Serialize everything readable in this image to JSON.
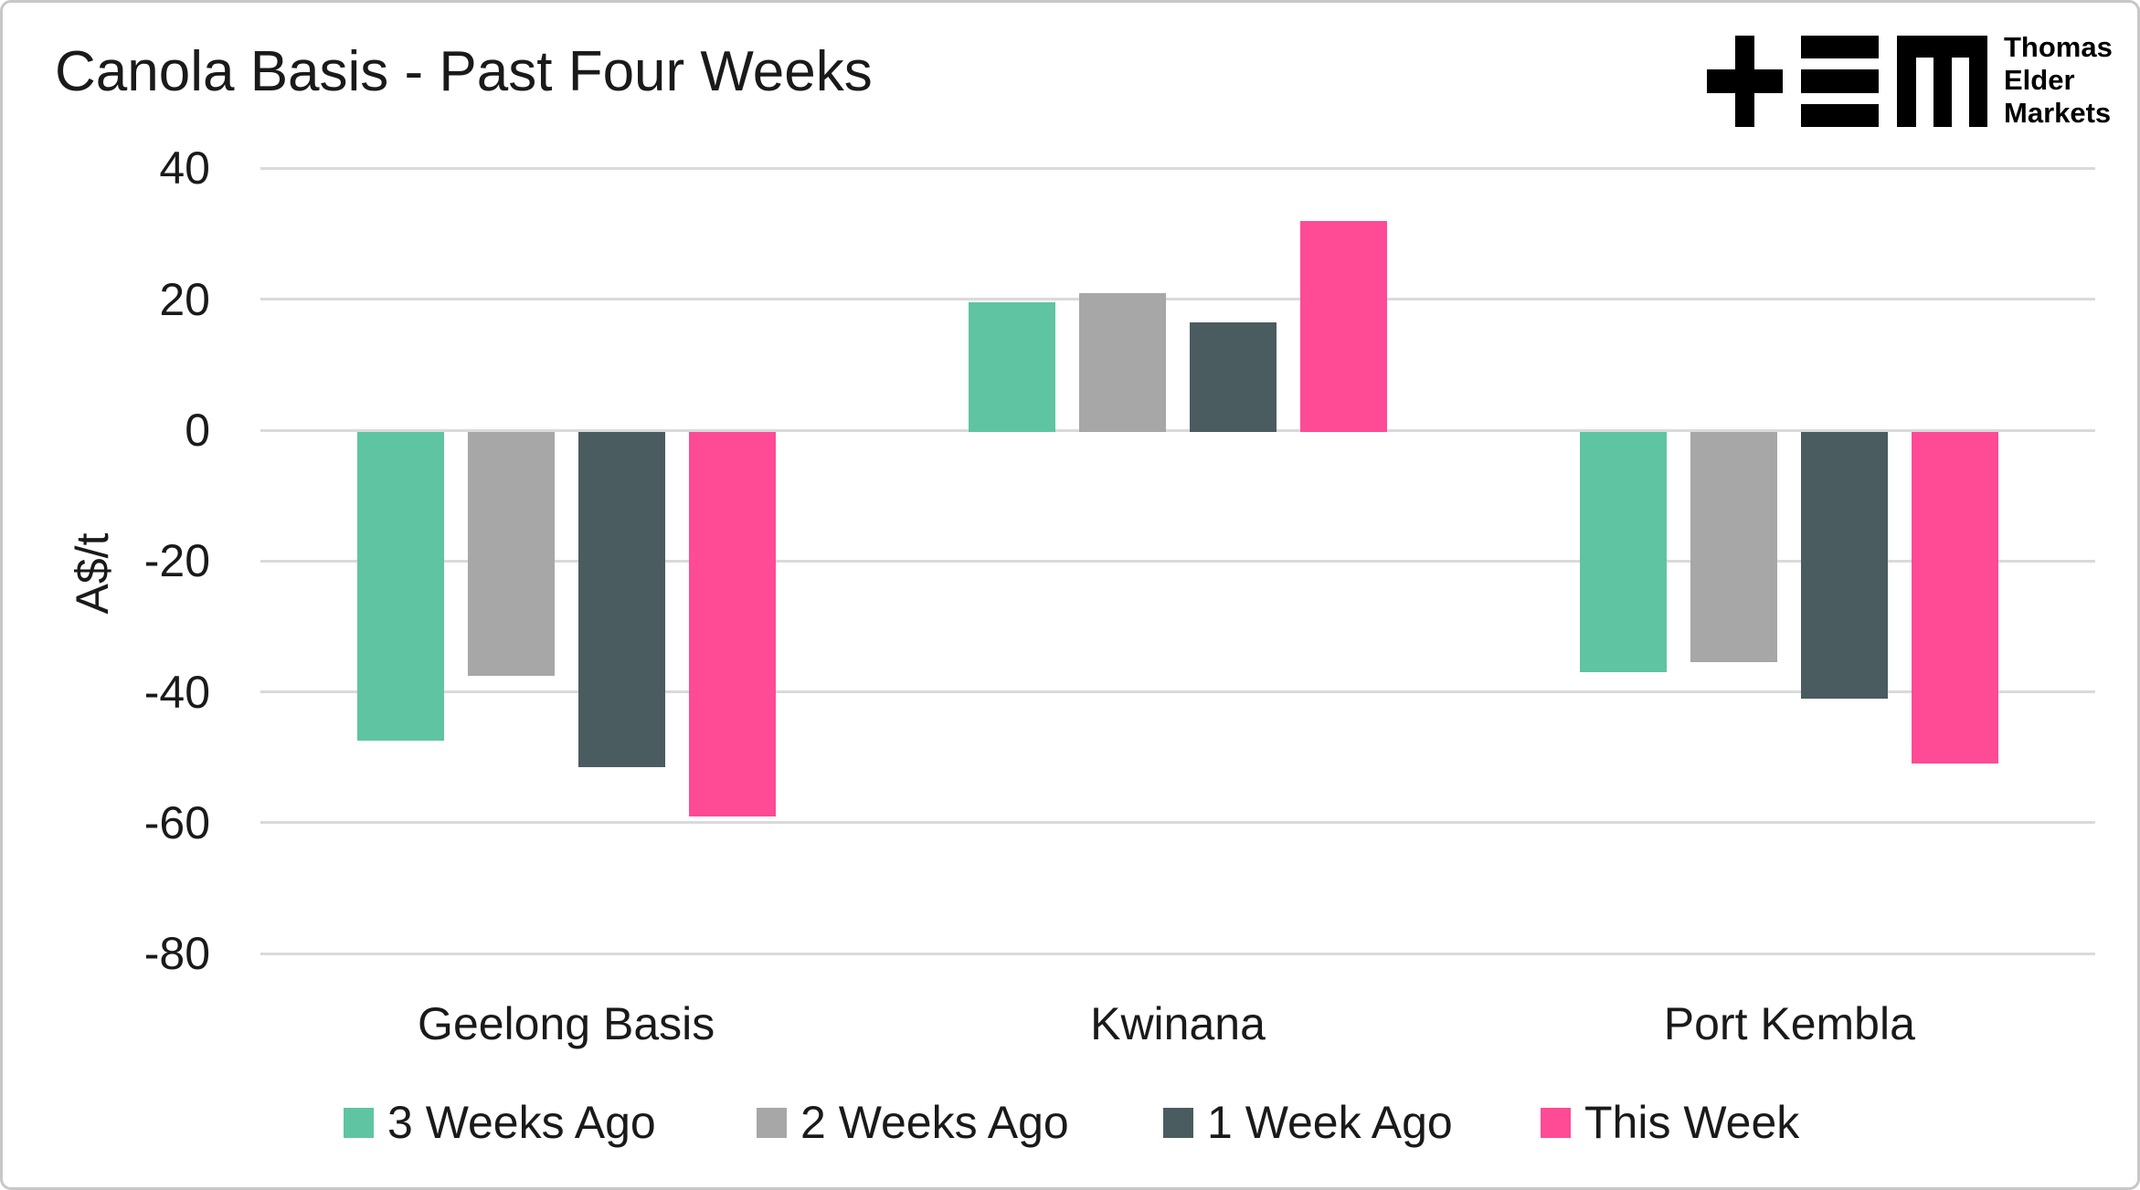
{
  "title": "Canola Basis - Past Four Weeks",
  "logo": {
    "name": "Thomas Elder Markets",
    "lines": [
      "Thomas",
      "Elder",
      "Markets"
    ]
  },
  "chart_data": {
    "type": "bar",
    "title": "Canola Basis - Past Four Weeks",
    "xlabel": "",
    "ylabel": "A$/t",
    "ylim": [
      -80,
      40
    ],
    "yticks": [
      40,
      20,
      0,
      -20,
      -40,
      -60,
      -80
    ],
    "grid": true,
    "legend_position": "bottom",
    "categories": [
      "Geelong Basis",
      "Kwinana",
      "Port Kembla"
    ],
    "series": [
      {
        "name": "3 Weeks Ago",
        "color": "#5FC4A2",
        "values": [
          -47.5,
          19.5,
          -37
        ]
      },
      {
        "name": "2 Weeks Ago",
        "color": "#A7A7A7",
        "values": [
          -37.5,
          21,
          -35.5
        ]
      },
      {
        "name": "1 Week Ago",
        "color": "#4A5C5F",
        "values": [
          -51.5,
          16.5,
          -41
        ]
      },
      {
        "name": "This Week",
        "color": "#FF4A95",
        "values": [
          -59,
          32,
          -51
        ]
      }
    ]
  },
  "colors": {
    "text": "#1A1A1A",
    "grid": "#DADADA",
    "border": "#C7C7C7",
    "background": "#FFFFFF",
    "logo": "#000000"
  }
}
